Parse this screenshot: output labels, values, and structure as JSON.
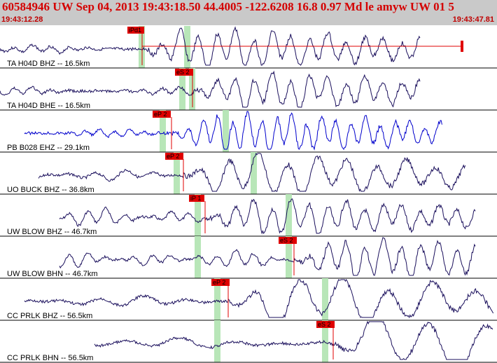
{
  "header": {
    "title": "60584946 UW Sep 04, 2013 19:43:18.50    44.4005 -122.6208 16.8 0.97 Md le amyw UW 01    5",
    "start_time": "19:43:12.28",
    "end_time": "19:43:47.81"
  },
  "colors": {
    "header_bg": "#c9c9c9",
    "title": "#d40000",
    "trace": "#1a0f5c",
    "trace_alt": "#0000cc",
    "pick": "#e00000",
    "window": "#b8e6b8"
  },
  "chart_data": {
    "type": "line",
    "title": "60584946 UW Sep 04, 2013 19:43:18.50    44.4005 -122.6208 16.8 0.97 Md le amyw UW 01    5",
    "x_range": [
      "19:43:12.28",
      "19:43:47.81"
    ],
    "traces": [
      {
        "label": "TA H04D BHZ -- 16.5km",
        "pick": "iPd1",
        "color_key": "trace"
      },
      {
        "label": "TA H04D BHE -- 16.5km",
        "pick": "eS 2",
        "color_key": "trace"
      },
      {
        "label": "PB B028 EHZ -- 29.1km",
        "pick": "eP 2",
        "color_key": "trace_alt"
      },
      {
        "label": "UO BUCK BHZ -- 36.8km",
        "pick": "eP 2",
        "color_key": "trace"
      },
      {
        "label": "UW BLOW BHZ -- 46.7km",
        "pick": "iP 1",
        "color_key": "trace"
      },
      {
        "label": "UW BLOW BHN -- 46.7km",
        "pick": "eS 2",
        "color_key": "trace"
      },
      {
        "label": "CC PRLK BHZ -- 56.5km",
        "pick": "eP 2",
        "color_key": "trace"
      },
      {
        "label": "CC PRLK BHN -- 56.5km",
        "pick": "eS 2",
        "color_key": "trace"
      }
    ]
  }
}
